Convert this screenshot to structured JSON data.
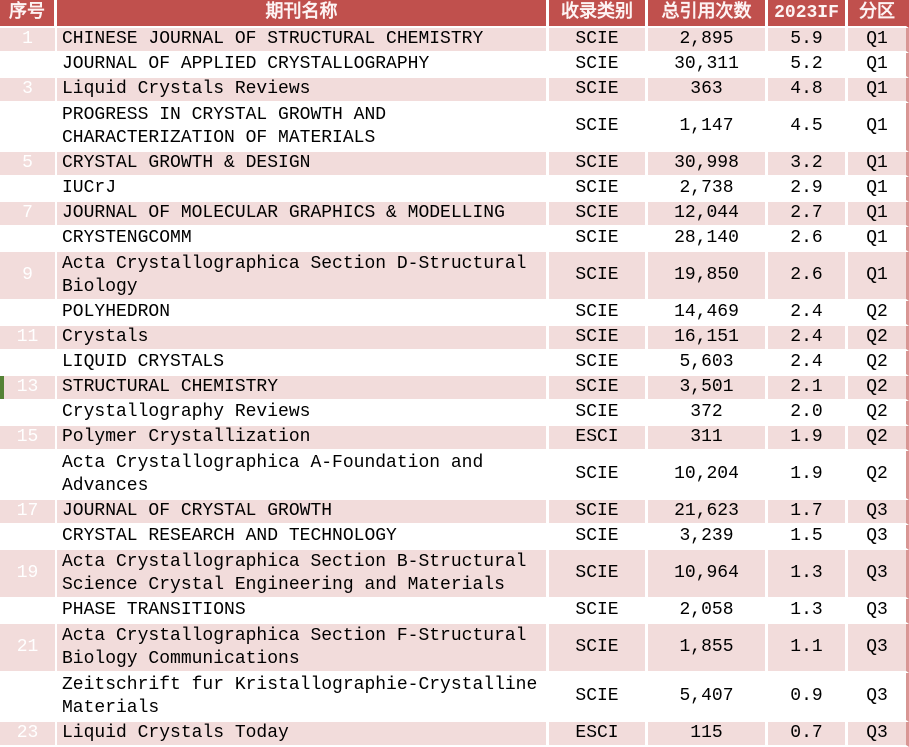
{
  "table": {
    "headers": [
      "序号",
      "期刊名称",
      "收录类别",
      "总引用次数",
      "2023IF",
      "分区"
    ],
    "green_marker_row_no": "13",
    "rows": [
      {
        "no": "1",
        "name": "CHINESE JOURNAL OF STRUCTURAL CHEMISTRY",
        "type": "SCIE",
        "citations": "2,895",
        "if": "5.9",
        "quartile": "Q1"
      },
      {
        "no": "2",
        "name": "JOURNAL OF APPLIED CRYSTALLOGRAPHY",
        "type": "SCIE",
        "citations": "30,311",
        "if": "5.2",
        "quartile": "Q1"
      },
      {
        "no": "3",
        "name": "Liquid Crystals Reviews",
        "type": "SCIE",
        "citations": "363",
        "if": "4.8",
        "quartile": "Q1"
      },
      {
        "no": "4",
        "name": "PROGRESS IN CRYSTAL GROWTH AND\nCHARACTERIZATION OF MATERIALS",
        "type": "SCIE",
        "citations": "1,147",
        "if": "4.5",
        "quartile": "Q1"
      },
      {
        "no": "5",
        "name": "CRYSTAL GROWTH & DESIGN",
        "type": "SCIE",
        "citations": "30,998",
        "if": "3.2",
        "quartile": "Q1"
      },
      {
        "no": "6",
        "name": "IUCrJ",
        "type": "SCIE",
        "citations": "2,738",
        "if": "2.9",
        "quartile": "Q1"
      },
      {
        "no": "7",
        "name": "JOURNAL OF MOLECULAR GRAPHICS & MODELLING",
        "type": "SCIE",
        "citations": "12,044",
        "if": "2.7",
        "quartile": "Q1"
      },
      {
        "no": "8",
        "name": "CRYSTENGCOMM",
        "type": "SCIE",
        "citations": "28,140",
        "if": "2.6",
        "quartile": "Q1"
      },
      {
        "no": "9",
        "name": "Acta Crystallographica Section D-Structural\nBiology",
        "type": "SCIE",
        "citations": "19,850",
        "if": "2.6",
        "quartile": "Q1"
      },
      {
        "no": "10",
        "name": "POLYHEDRON",
        "type": "SCIE",
        "citations": "14,469",
        "if": "2.4",
        "quartile": "Q2"
      },
      {
        "no": "11",
        "name": "Crystals",
        "type": "SCIE",
        "citations": "16,151",
        "if": "2.4",
        "quartile": "Q2"
      },
      {
        "no": "12",
        "name": "LIQUID CRYSTALS",
        "type": "SCIE",
        "citations": "5,603",
        "if": "2.4",
        "quartile": "Q2"
      },
      {
        "no": "13",
        "name": "STRUCTURAL CHEMISTRY",
        "type": "SCIE",
        "citations": "3,501",
        "if": "2.1",
        "quartile": "Q2"
      },
      {
        "no": "14",
        "name": "Crystallography Reviews",
        "type": "SCIE",
        "citations": "372",
        "if": "2.0",
        "quartile": "Q2"
      },
      {
        "no": "15",
        "name": "Polymer Crystallization",
        "type": "ESCI",
        "citations": "311",
        "if": "1.9",
        "quartile": "Q2"
      },
      {
        "no": "16",
        "name": "Acta Crystallographica A-Foundation and\nAdvances",
        "type": "SCIE",
        "citations": "10,204",
        "if": "1.9",
        "quartile": "Q2"
      },
      {
        "no": "17",
        "name": "JOURNAL OF CRYSTAL GROWTH",
        "type": "SCIE",
        "citations": "21,623",
        "if": "1.7",
        "quartile": "Q3"
      },
      {
        "no": "18",
        "name": "CRYSTAL RESEARCH AND TECHNOLOGY",
        "type": "SCIE",
        "citations": "3,239",
        "if": "1.5",
        "quartile": "Q3"
      },
      {
        "no": "19",
        "name": "Acta Crystallographica Section B-Structural\nScience Crystal Engineering and Materials",
        "type": "SCIE",
        "citations": "10,964",
        "if": "1.3",
        "quartile": "Q3"
      },
      {
        "no": "20",
        "name": "PHASE TRANSITIONS",
        "type": "SCIE",
        "citations": "2,058",
        "if": "1.3",
        "quartile": "Q3"
      },
      {
        "no": "21",
        "name": "Acta Crystallographica Section F-Structural\nBiology Communications",
        "type": "SCIE",
        "citations": "1,855",
        "if": "1.1",
        "quartile": "Q3"
      },
      {
        "no": "22",
        "name": "Zeitschrift fur Kristallographie-Crystalline\nMaterials",
        "type": "SCIE",
        "citations": "5,407",
        "if": "0.9",
        "quartile": "Q3"
      },
      {
        "no": "23",
        "name": "Liquid Crystals Today",
        "type": "ESCI",
        "citations": "115",
        "if": "0.7",
        "quartile": "Q3"
      }
    ]
  },
  "colors": {
    "header_bg": "#c0504d",
    "index_bg": "#c0504d",
    "pink_row": "#f2dcdb",
    "white_row": "#ffffff",
    "grid": "#ffffff",
    "right_edge": "#d99694",
    "marker_green": "#548235",
    "header_text": "#fdf3f3",
    "body_text": "#000000"
  }
}
